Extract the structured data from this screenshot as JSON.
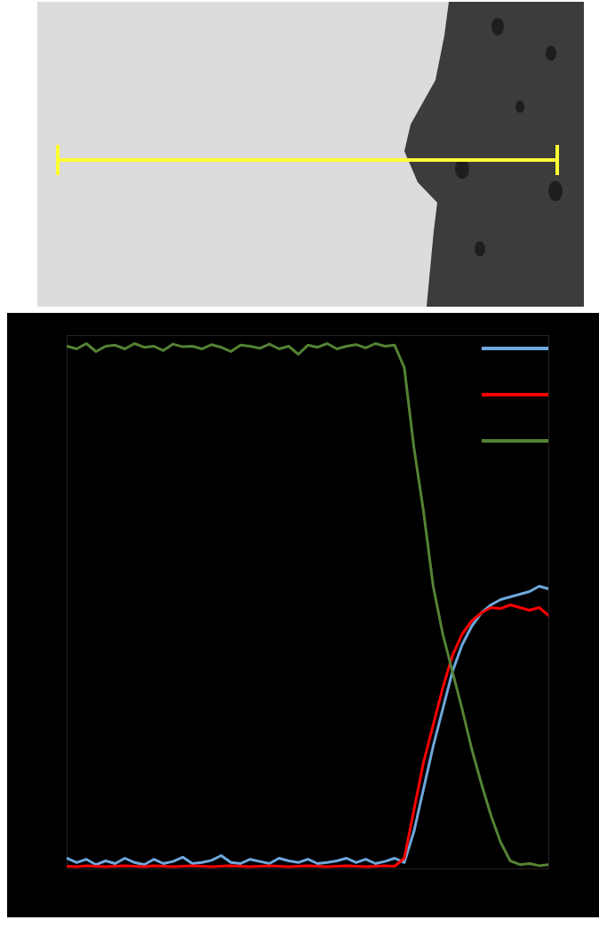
{
  "chart_data": {
    "type": "line",
    "x": [
      0,
      2,
      4,
      6,
      8,
      10,
      12,
      14,
      16,
      18,
      20,
      22,
      24,
      26,
      28,
      30,
      32,
      34,
      36,
      38,
      40,
      42,
      44,
      46,
      48,
      50,
      52,
      54,
      56,
      58,
      60,
      62,
      64,
      66,
      68,
      70,
      72,
      74,
      76,
      78,
      80,
      82,
      84,
      86,
      88,
      90,
      92,
      94,
      96,
      98,
      100
    ],
    "series": [
      {
        "color": "#6fa8dc",
        "values": [
          0.02,
          0.012,
          0.018,
          0.008,
          0.015,
          0.01,
          0.02,
          0.012,
          0.008,
          0.018,
          0.01,
          0.014,
          0.022,
          0.01,
          0.012,
          0.016,
          0.025,
          0.012,
          0.01,
          0.018,
          0.014,
          0.01,
          0.02,
          0.015,
          0.012,
          0.018,
          0.01,
          0.012,
          0.015,
          0.02,
          0.012,
          0.018,
          0.01,
          0.014,
          0.02,
          0.012,
          0.07,
          0.15,
          0.23,
          0.3,
          0.37,
          0.42,
          0.455,
          0.48,
          0.495,
          0.505,
          0.51,
          0.515,
          0.52,
          0.53,
          0.525
        ]
      },
      {
        "color": "#ff0000",
        "values": [
          0.005,
          0.004,
          0.006,
          0.005,
          0.004,
          0.005,
          0.006,
          0.005,
          0.004,
          0.006,
          0.005,
          0.004,
          0.005,
          0.006,
          0.005,
          0.004,
          0.005,
          0.006,
          0.005,
          0.004,
          0.005,
          0.006,
          0.005,
          0.004,
          0.005,
          0.006,
          0.005,
          0.004,
          0.005,
          0.006,
          0.005,
          0.004,
          0.005,
          0.006,
          0.005,
          0.02,
          0.11,
          0.2,
          0.27,
          0.34,
          0.4,
          0.44,
          0.465,
          0.48,
          0.49,
          0.488,
          0.495,
          0.49,
          0.485,
          0.49,
          0.475
        ]
      },
      {
        "color": "#548235",
        "values": [
          0.98,
          0.975,
          0.985,
          0.97,
          0.98,
          0.982,
          0.975,
          0.985,
          0.978,
          0.98,
          0.972,
          0.984,
          0.979,
          0.98,
          0.975,
          0.983,
          0.978,
          0.97,
          0.982,
          0.98,
          0.976,
          0.984,
          0.975,
          0.98,
          0.965,
          0.982,
          0.978,
          0.985,
          0.975,
          0.98,
          0.983,
          0.977,
          0.985,
          0.98,
          0.982,
          0.94,
          0.79,
          0.67,
          0.53,
          0.44,
          0.37,
          0.3,
          0.225,
          0.16,
          0.1,
          0.05,
          0.015,
          0.008,
          0.01,
          0.006,
          0.008
        ]
      }
    ],
    "xlim": [
      0,
      100
    ],
    "ylim": [
      0,
      1
    ],
    "tick_labels": false,
    "grid": false,
    "legend": "top-right"
  }
}
